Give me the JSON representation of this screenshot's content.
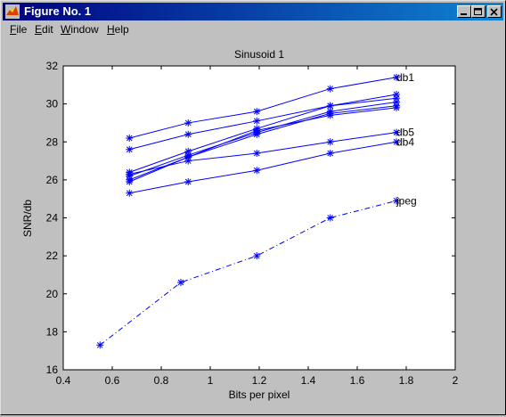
{
  "window": {
    "title": "Figure No. 1",
    "minimize_icon": "minimize-icon",
    "maximize_icon": "maximize-icon",
    "close_icon": "close-icon"
  },
  "menu": {
    "items": [
      {
        "label": "File",
        "accel": "F",
        "rest": "ile"
      },
      {
        "label": "Edit",
        "accel": "E",
        "rest": "dit"
      },
      {
        "label": "Window",
        "accel": "W",
        "rest": "indow"
      },
      {
        "label": "Help",
        "accel": "H",
        "rest": "elp"
      }
    ]
  },
  "colors": {
    "series": "#0000ff",
    "titlebar": "#000080",
    "plot_background": "#ffffff"
  },
  "chart_data": {
    "type": "line",
    "title": "Sinusoid 1",
    "xlabel": "Bits per pixel",
    "ylabel": "SNR/db",
    "xlim": [
      0.4,
      2
    ],
    "ylim": [
      16,
      32
    ],
    "xticks": [
      0.4,
      0.6,
      0.8,
      1,
      1.2,
      1.4,
      1.6,
      1.8,
      2
    ],
    "yticks": [
      16,
      18,
      20,
      22,
      24,
      26,
      28,
      30,
      32
    ],
    "xtick_labels": [
      "0.4",
      "0.6",
      "0.8",
      "1",
      "1.2",
      "1.4",
      "1.6",
      "1.8",
      "2"
    ],
    "ytick_labels": [
      "16",
      "18",
      "20",
      "22",
      "24",
      "26",
      "28",
      "30",
      "32"
    ],
    "grid": false,
    "marker": "*",
    "series": [
      {
        "name": "db1",
        "style": "solid",
        "x": [
          0.67,
          0.91,
          1.19,
          1.49,
          1.76
        ],
        "y": [
          28.2,
          29.0,
          29.6,
          30.8,
          31.4
        ]
      },
      {
        "name": "db5",
        "style": "solid",
        "x": [
          0.67,
          0.91,
          1.19,
          1.49,
          1.76
        ],
        "y": [
          26.3,
          27.0,
          27.4,
          28.0,
          28.5
        ]
      },
      {
        "name": "db4",
        "style": "solid",
        "x": [
          0.67,
          0.91,
          1.19,
          1.49,
          1.76
        ],
        "y": [
          25.3,
          25.9,
          26.5,
          27.4,
          28.0
        ]
      },
      {
        "name": "jpeg",
        "style": "dashdot",
        "x": [
          0.55,
          0.88,
          1.19,
          1.49,
          1.76
        ],
        "y": [
          17.3,
          20.6,
          22.0,
          24.0,
          24.9
        ]
      },
      {
        "name": "",
        "style": "solid",
        "x": [
          0.67,
          0.91,
          1.19,
          1.49,
          1.76
        ],
        "y": [
          27.6,
          28.4,
          29.1,
          29.9,
          30.5
        ]
      },
      {
        "name": "",
        "style": "solid",
        "x": [
          0.67,
          0.91,
          1.19,
          1.49,
          1.76
        ],
        "y": [
          26.4,
          27.5,
          28.7,
          29.9,
          30.3
        ]
      },
      {
        "name": "",
        "style": "solid",
        "x": [
          0.67,
          0.91,
          1.19,
          1.49,
          1.76
        ],
        "y": [
          26.2,
          27.3,
          28.5,
          29.6,
          30.1
        ]
      },
      {
        "name": "",
        "style": "solid",
        "x": [
          0.67,
          0.91,
          1.19,
          1.49,
          1.76
        ],
        "y": [
          26.0,
          27.2,
          28.4,
          29.5,
          29.9
        ]
      },
      {
        "name": "",
        "style": "solid",
        "x": [
          0.67,
          0.91,
          1.19,
          1.49,
          1.76
        ],
        "y": [
          25.9,
          27.2,
          28.6,
          29.4,
          29.8
        ]
      }
    ]
  }
}
